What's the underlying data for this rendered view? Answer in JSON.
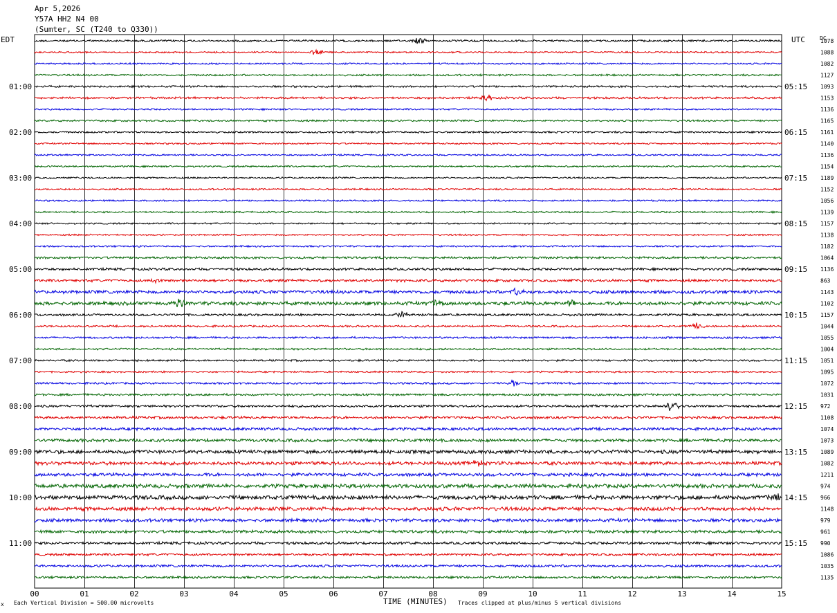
{
  "header": {
    "date": "Apr 5,2026",
    "station": "Y57A HH2 N4 00",
    "location": "(Sumter, SC (T240 to Q330))",
    "left_tz": "EDT",
    "right_tz": "UTC",
    "dc_label": "DC"
  },
  "footer": {
    "scale_note": "Each Vertical Division =  500.00 microvolts",
    "x_title": "TIME (MINUTES)",
    "clip_note": "Traces clipped at plus/minus 5 vertical divisions",
    "corner_mark": "x"
  },
  "chart_data": {
    "type": "line",
    "title": "Y57A HH2 N4 00",
    "xlabel": "TIME (MINUTES)",
    "xlim": [
      0,
      15
    ],
    "x_ticks": [
      "00",
      "01",
      "02",
      "03",
      "04",
      "05",
      "06",
      "07",
      "08",
      "09",
      "10",
      "11",
      "12",
      "13",
      "14",
      "15"
    ],
    "left_time_labels": [
      "01:00",
      "02:00",
      "03:00",
      "04:00",
      "05:00",
      "06:00",
      "07:00",
      "08:00",
      "09:00",
      "10:00",
      "11:00"
    ],
    "right_time_labels": [
      "05:15",
      "06:15",
      "07:15",
      "08:15",
      "09:15",
      "10:15",
      "11:15",
      "12:15",
      "13:15",
      "14:15",
      "15:15"
    ],
    "trace_colors": [
      "#000000",
      "#e00000",
      "#0000e0",
      "#006400"
    ],
    "dc_offsets": [
      "1078",
      "1088",
      "1082",
      "1127",
      "1093",
      "1153",
      "1136",
      "1165",
      "1161",
      "1140",
      "1136",
      "1154",
      "1189",
      "1152",
      "1056",
      "1139",
      "1157",
      "1138",
      "1182",
      "1064",
      "1136",
      "863",
      "1143",
      "1102",
      "1157",
      "1044",
      "1055",
      "1004",
      "1051",
      "1095",
      "1072",
      "1031",
      "972",
      "1108",
      "1074",
      "1073",
      "1089",
      "1082",
      "1211",
      "974",
      "966",
      "1148",
      "979",
      "961",
      "990",
      "1086",
      "1035",
      "1135"
    ],
    "noise_amplitude": [
      1.2,
      1.0,
      1.0,
      1.1,
      1.2,
      1.3,
      1.0,
      1.1,
      1.1,
      1.0,
      1.0,
      1.0,
      1.0,
      1.0,
      1.0,
      1.0,
      1.0,
      1.0,
      1.0,
      1.4,
      1.5,
      1.6,
      2.0,
      2.2,
      1.4,
      1.2,
      1.2,
      1.1,
      1.2,
      1.1,
      1.2,
      1.3,
      1.4,
      1.6,
      1.7,
      1.9,
      2.2,
      2.1,
      2.0,
      2.4,
      2.6,
      2.3,
      2.0,
      1.8,
      1.6,
      1.4,
      1.5,
      1.4
    ],
    "events": [
      {
        "trace": 0,
        "minute": 7.7,
        "amplitude": 7
      },
      {
        "trace": 1,
        "minute": 5.65,
        "amplitude": 5
      },
      {
        "trace": 5,
        "minute": 9.1,
        "amplitude": 4
      },
      {
        "trace": 21,
        "minute": 2.4,
        "amplitude": 5
      },
      {
        "trace": 22,
        "minute": 9.7,
        "amplitude": 6
      },
      {
        "trace": 23,
        "minute": 2.9,
        "amplitude": 6
      },
      {
        "trace": 23,
        "minute": 8.0,
        "amplitude": 5
      },
      {
        "trace": 23,
        "minute": 10.8,
        "amplitude": 5
      },
      {
        "trace": 24,
        "minute": 7.4,
        "amplitude": 5
      },
      {
        "trace": 25,
        "minute": 13.3,
        "amplitude": 5
      },
      {
        "trace": 30,
        "minute": 9.6,
        "amplitude": 5
      },
      {
        "trace": 32,
        "minute": 12.8,
        "amplitude": 8
      },
      {
        "trace": 37,
        "minute": 8.9,
        "amplitude": 6
      },
      {
        "trace": 40,
        "minute": 14.9,
        "amplitude": 5
      }
    ]
  }
}
